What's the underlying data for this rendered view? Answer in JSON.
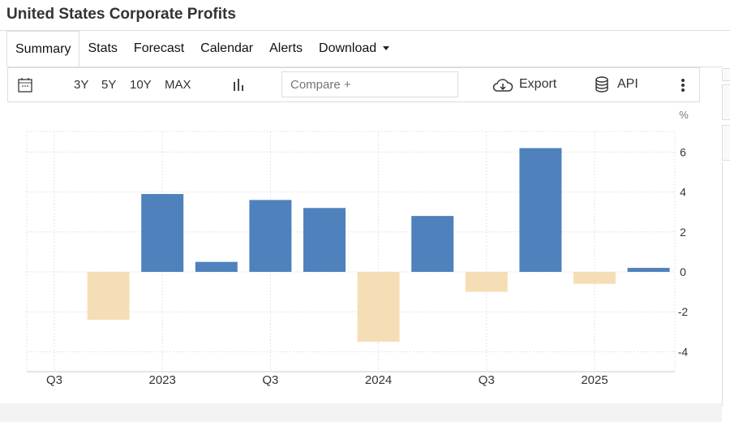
{
  "title": "United States Corporate Profits",
  "tabs": [
    "Summary",
    "Stats",
    "Forecast",
    "Calendar",
    "Alerts",
    "Download"
  ],
  "toolbar": {
    "ranges": [
      "3Y",
      "5Y",
      "10Y",
      "MAX"
    ],
    "compare_placeholder": "Compare +",
    "export": "Export",
    "api": "API"
  },
  "chart_data": {
    "type": "bar",
    "unit": "%",
    "categories": [
      "2022 Q4",
      "2023 Q1",
      "2023 Q2",
      "2023 Q3",
      "2023 Q4",
      "2024 Q1",
      "2024 Q2",
      "2024 Q3",
      "2024 Q4",
      "2025 Q1",
      "2025 Q2"
    ],
    "values": [
      -2.4,
      3.9,
      0.5,
      3.6,
      3.2,
      -3.5,
      2.8,
      -1.0,
      6.2,
      -0.6,
      0.2
    ],
    "x_tick_labels": [
      {
        "label": "Q3",
        "index": -1
      },
      {
        "label": "2023",
        "index": 1
      },
      {
        "label": "Q3",
        "index": 3
      },
      {
        "label": "2024",
        "index": 5
      },
      {
        "label": "Q3",
        "index": 7
      },
      {
        "label": "2025",
        "index": 9
      }
    ],
    "y_ticks": [
      6,
      4,
      2,
      0,
      -2,
      -4
    ],
    "ylim": [
      -5,
      7
    ],
    "colors": {
      "positive": "#4f81bd",
      "negative": "#f5deb6"
    },
    "grid": true
  }
}
